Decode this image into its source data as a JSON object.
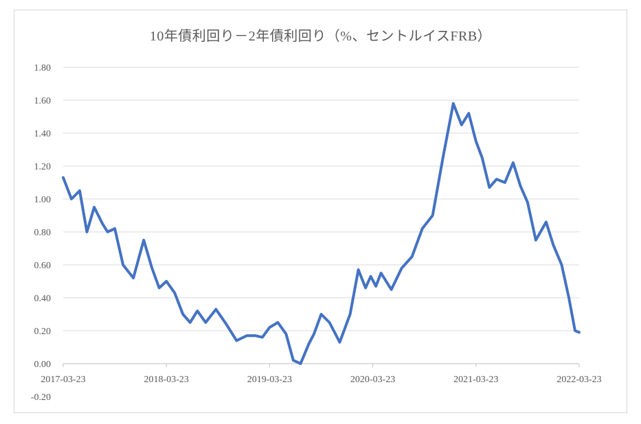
{
  "chart_data": {
    "type": "line",
    "title": "10年債利回り－2年債利回り（%、セントルイスFRB）",
    "xlabel": "",
    "ylabel": "",
    "ylim": [
      -0.2,
      1.8
    ],
    "y_ticks": [
      "-0.20",
      "0.00",
      "0.20",
      "0.40",
      "0.60",
      "0.80",
      "1.00",
      "1.20",
      "1.40",
      "1.60",
      "1.80"
    ],
    "x_ticks": [
      "2017-03-23",
      "2018-03-23",
      "2019-03-23",
      "2020-03-23",
      "2021-03-23",
      "2022-03-23"
    ],
    "grid": true,
    "line_color": "#4472C4",
    "series": [
      {
        "x": [
          2017.22,
          2017.3,
          2017.38,
          2017.45,
          2017.52,
          2017.6,
          2017.65,
          2017.72,
          2017.8,
          2017.9,
          2018.0,
          2018.08,
          2018.15,
          2018.22,
          2018.3,
          2018.38,
          2018.45,
          2018.52,
          2018.6,
          2018.7,
          2018.8,
          2018.9,
          2019.0,
          2019.08,
          2019.15,
          2019.22,
          2019.3,
          2019.38,
          2019.45,
          2019.52,
          2019.6,
          2019.65,
          2019.72,
          2019.8,
          2019.9,
          2020.0,
          2020.08,
          2020.15,
          2020.2,
          2020.25,
          2020.3,
          2020.4,
          2020.5,
          2020.6,
          2020.7,
          2020.8,
          2020.9,
          2021.0,
          2021.08,
          2021.15,
          2021.22,
          2021.28,
          2021.35,
          2021.42,
          2021.5,
          2021.58,
          2021.65,
          2021.72,
          2021.8,
          2021.9,
          2021.97,
          2022.05,
          2022.12,
          2022.18,
          2022.22
        ],
        "y": [
          1.13,
          1.0,
          1.05,
          0.8,
          0.95,
          0.85,
          0.8,
          0.82,
          0.6,
          0.52,
          0.75,
          0.58,
          0.46,
          0.5,
          0.43,
          0.3,
          0.25,
          0.32,
          0.25,
          0.33,
          0.24,
          0.14,
          0.17,
          0.17,
          0.16,
          0.22,
          0.25,
          0.18,
          0.02,
          0.0,
          0.12,
          0.18,
          0.3,
          0.25,
          0.13,
          0.3,
          0.57,
          0.46,
          0.53,
          0.47,
          0.55,
          0.45,
          0.58,
          0.65,
          0.82,
          0.9,
          1.25,
          1.58,
          1.45,
          1.52,
          1.35,
          1.25,
          1.07,
          1.12,
          1.1,
          1.22,
          1.08,
          0.98,
          0.75,
          0.86,
          0.72,
          0.6,
          0.4,
          0.2,
          0.19
        ]
      }
    ]
  }
}
